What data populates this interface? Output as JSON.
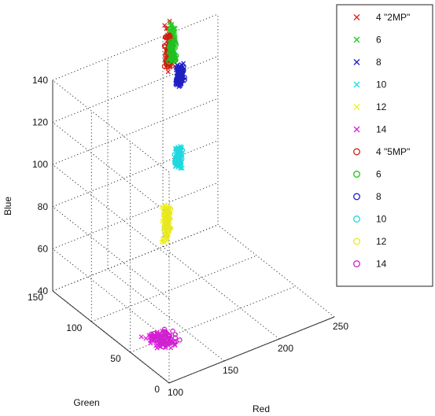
{
  "chart_data": {
    "type": "scatter",
    "title": "",
    "xlabel": "Red",
    "ylabel": "Green",
    "zlabel": "Blue",
    "xlim": [
      100,
      250
    ],
    "ylim": [
      0,
      150
    ],
    "zlim": [
      40,
      140
    ],
    "x_ticks": [
      "100",
      "150",
      "200",
      "250"
    ],
    "y_ticks": [
      "0",
      "50",
      "100",
      "150"
    ],
    "z_ticks": [
      "40",
      "60",
      "80",
      "100",
      "120",
      "140"
    ],
    "grid": true,
    "legend_position": "top-right",
    "series": [
      {
        "name": "4 \"2MP\"",
        "marker": "x",
        "color": "#e02020",
        "cluster": {
          "x": 205,
          "y": 150,
          "z": [
            122,
            146
          ]
        }
      },
      {
        "name": "6",
        "marker": "x",
        "color": "#22cc22",
        "cluster": {
          "x": 208,
          "y": 150,
          "z": [
            128,
            145
          ]
        }
      },
      {
        "name": "8",
        "marker": "x",
        "color": "#2020d0",
        "cluster": {
          "x": 215,
          "y": 150,
          "z": [
            113,
            124
          ]
        }
      },
      {
        "name": "10",
        "marker": "x",
        "color": "#20e0e0",
        "cluster": {
          "x": 214,
          "y": 150,
          "z": [
            74,
            85
          ]
        }
      },
      {
        "name": "12",
        "marker": "x",
        "color": "#f0f020",
        "cluster": {
          "x": 203,
          "y": 150,
          "z": [
            42,
            61
          ]
        }
      },
      {
        "name": "14",
        "marker": "x",
        "color": "#e020e0",
        "cluster": {
          "x": [
            120,
            135
          ],
          "y": [
            38,
            62
          ],
          "z": 40
        }
      },
      {
        "name": "4 \"5MP\"",
        "marker": "o",
        "color": "#d02010",
        "cluster": {
          "x": 205,
          "y": 150,
          "z": [
            124,
            140
          ]
        }
      },
      {
        "name": "6",
        "marker": "o",
        "color": "#20c020",
        "cluster": {
          "x": 209,
          "y": 150,
          "z": [
            126,
            136
          ]
        }
      },
      {
        "name": "8",
        "marker": "o",
        "color": "#2020c0",
        "cluster": {
          "x": 216,
          "y": 150,
          "z": [
            114,
            122
          ]
        }
      },
      {
        "name": "10",
        "marker": "o",
        "color": "#20d8e0",
        "cluster": {
          "x": 214,
          "y": 150,
          "z": [
            76,
            84
          ]
        }
      },
      {
        "name": "12",
        "marker": "o",
        "color": "#e8e820",
        "cluster": {
          "x": 204,
          "y": 150,
          "z": [
            44,
            58
          ]
        }
      },
      {
        "name": "14",
        "marker": "o",
        "color": "#d020d0",
        "cluster": {
          "x": [
            125,
            140
          ],
          "y": [
            40,
            60
          ],
          "z": 40
        }
      }
    ]
  }
}
